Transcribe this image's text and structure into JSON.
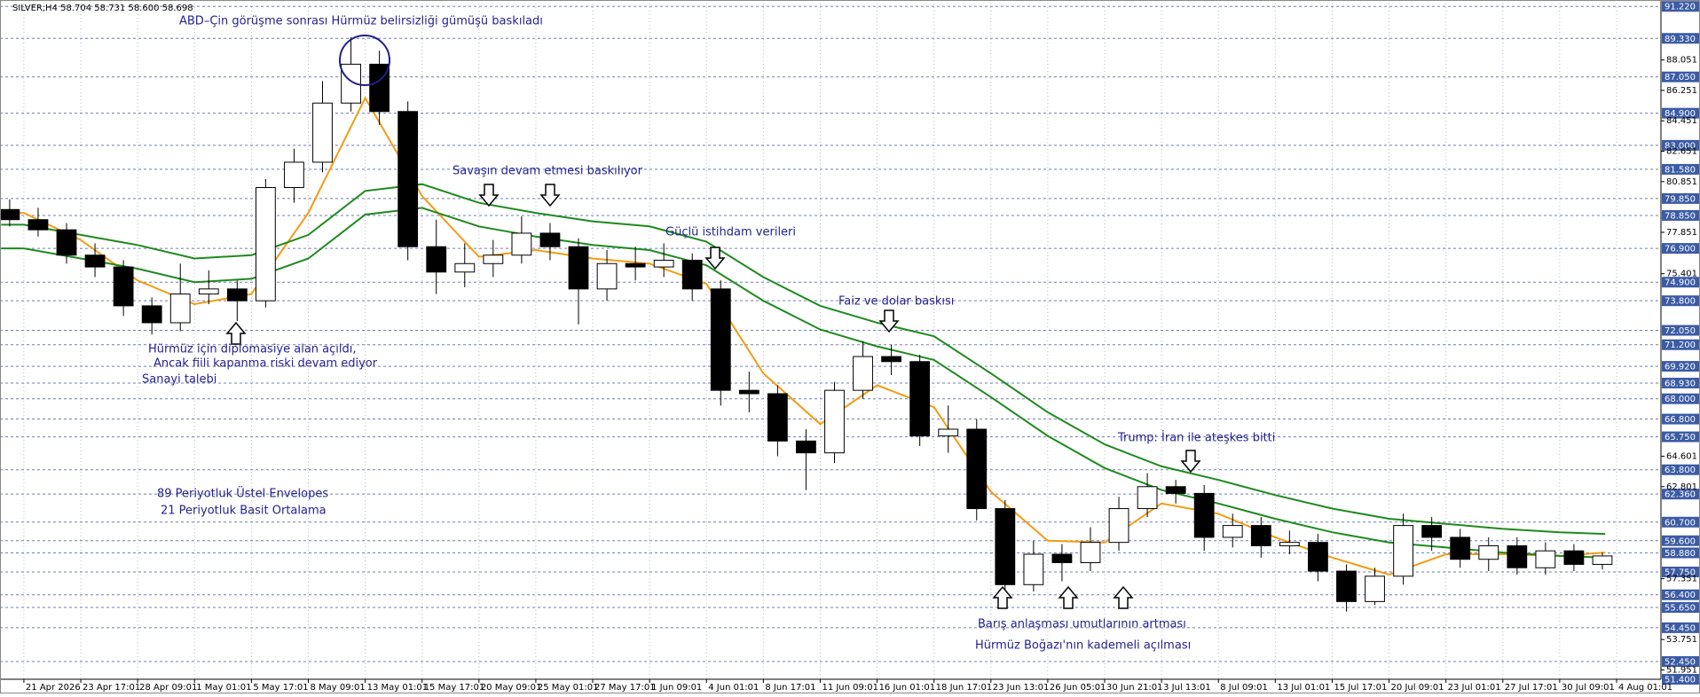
{
  "chart_data": {
    "type": "candlestick",
    "title": "SILVER,H4  58.704 58.731 58.600 58.698",
    "categories": [
      "21 Apr 2026",
      "23 Apr 17:01",
      "28 Apr 09:01",
      "1 May 01:01",
      "5 May 17:01",
      "8 May 09:01",
      "13 May 01:01",
      "15 May 17:01",
      "20 May 09:01",
      "25 May 01:01",
      "27 May 17:01",
      "1 Jun 09:01",
      "4 Jun 01:01",
      "8 Jun 17:01",
      "11 Jun 09:01",
      "16 Jun 01:01",
      "18 Jun 17:01",
      "23 Jun 13:01",
      "26 Jun 05:01",
      "30 Jun 21:01",
      "3 Jul 13:01",
      "8 Jul 09:01",
      "13 Jul 01:01",
      "15 Jul 17:01",
      "20 Jul 09:01",
      "23 Jul 01:01",
      "27 Jul 17:01",
      "30 Jul 09:01",
      "4 Aug 01:01"
    ],
    "xlim": [
      -0.42,
      28.78
    ],
    "ylim": [
      51.4,
      91.6
    ],
    "yticks": [
      51.951,
      53.751,
      57.351,
      62.801,
      64.601,
      75.401,
      77.851,
      80.851,
      82.651,
      84.451,
      86.251,
      88.051
    ],
    "levels": [
      {
        "value": 91.22,
        "label": "91.220"
      },
      {
        "value": 89.33,
        "label": "89.330"
      },
      {
        "value": 87.05,
        "label": "87.050"
      },
      {
        "value": 84.9,
        "label": "84.900"
      },
      {
        "value": 83,
        "label": "83.000"
      },
      {
        "value": 81.58,
        "label": "81.580"
      },
      {
        "value": 79.85,
        "label": "79.850"
      },
      {
        "value": 78.85,
        "label": "78.850"
      },
      {
        "value": 76.9,
        "label": "76.900"
      },
      {
        "value": 74.9,
        "label": "74.900"
      },
      {
        "value": 73.8,
        "label": "73.800"
      },
      {
        "value": 72.05,
        "label": "72.050"
      },
      {
        "value": 71.2,
        "label": "71.200"
      },
      {
        "value": 69.92,
        "label": "69.920"
      },
      {
        "value": 68.93,
        "label": "68.930"
      },
      {
        "value": 68,
        "label": "68.000"
      },
      {
        "value": 66.8,
        "label": "66.800"
      },
      {
        "value": 65.75,
        "label": "65.750"
      },
      {
        "value": 63.8,
        "label": "63.800"
      },
      {
        "value": 62.36,
        "label": "62.360"
      },
      {
        "value": 60.7,
        "label": "60.700"
      },
      {
        "value": 59.6,
        "label": "59.600"
      },
      {
        "value": 58.88,
        "label": "58.880"
      },
      {
        "value": 57.75,
        "label": "57.750"
      },
      {
        "value": 56.4,
        "label": "56.400"
      },
      {
        "value": 55.65,
        "label": "55.650"
      },
      {
        "value": 54.45,
        "label": "54.450"
      },
      {
        "value": 52.45,
        "label": "52.450"
      },
      {
        "value": 51.4,
        "label": "51.400"
      }
    ],
    "grid": true,
    "candles": {
      "x": [
        -0.25,
        0.25,
        0.75,
        1.25,
        1.75,
        2.25,
        2.75,
        3.25,
        3.75,
        4.25,
        4.75,
        5.25,
        5.75,
        6.25,
        6.75,
        7.25,
        7.75,
        8.25,
        8.75,
        9.25,
        9.75,
        10.25,
        10.75,
        11.25,
        11.75,
        12.25,
        12.75,
        13.25,
        13.75,
        14.25,
        14.75,
        15.25,
        15.75,
        16.25,
        16.75,
        17.25,
        17.75,
        18.25,
        18.75,
        19.25,
        19.75,
        20.25,
        20.75,
        21.25,
        21.75,
        22.25,
        22.75,
        23.25,
        23.75,
        24.25,
        24.75,
        25.25,
        25.75,
        26.25,
        26.75,
        27.25,
        27.75
      ],
      "open": [
        79.2,
        78.6,
        78.0,
        76.5,
        75.8,
        73.5,
        72.5,
        74.2,
        74.5,
        73.8,
        80.5,
        82.0,
        85.5,
        87.8,
        85.0,
        77.0,
        75.5,
        76.0,
        76.5,
        77.8,
        77.0,
        74.5,
        76.0,
        75.8,
        76.2,
        74.5,
        68.5,
        68.3,
        65.5,
        64.8,
        68.5,
        70.5,
        70.2,
        65.8,
        66.2,
        61.5,
        57.0,
        58.8,
        58.3,
        59.5,
        61.5,
        62.8,
        62.4,
        59.8,
        60.5,
        59.3,
        59.5,
        57.8,
        56.0,
        57.5,
        60.5,
        59.8,
        58.5,
        59.3,
        58.0,
        59.0,
        58.2
      ],
      "high": [
        79.8,
        79.3,
        78.4,
        77.2,
        76.2,
        74.0,
        76.0,
        75.6,
        75.0,
        81.0,
        82.8,
        86.8,
        89.4,
        88.6,
        85.6,
        78.6,
        77.2,
        77.4,
        78.8,
        78.4,
        77.5,
        76.8,
        77.0,
        77.2,
        76.6,
        75.0,
        69.6,
        68.8,
        66.2,
        69.0,
        71.4,
        71.2,
        70.6,
        67.6,
        66.8,
        62.0,
        59.6,
        59.4,
        60.4,
        62.2,
        63.6,
        63.2,
        62.9,
        61.2,
        61.0,
        60.2,
        60.0,
        58.2,
        58.0,
        61.2,
        61.0,
        60.3,
        59.8,
        59.8,
        59.5,
        59.4,
        58.9
      ],
      "low": [
        78.2,
        77.6,
        76.0,
        75.2,
        72.9,
        71.8,
        72.0,
        73.6,
        72.6,
        73.4,
        79.6,
        81.4,
        85.0,
        84.2,
        76.2,
        74.2,
        74.6,
        75.2,
        76.0,
        76.2,
        72.4,
        73.8,
        75.0,
        75.2,
        73.8,
        67.6,
        67.2,
        64.6,
        62.6,
        64.2,
        68.0,
        69.4,
        65.2,
        64.8,
        60.8,
        56.2,
        56.6,
        57.2,
        57.8,
        59.0,
        61.0,
        61.8,
        59.0,
        59.2,
        58.6,
        58.8,
        57.2,
        55.4,
        55.8,
        57.0,
        59.0,
        58.0,
        57.8,
        57.6,
        57.6,
        57.8,
        57.9
      ],
      "close": [
        78.6,
        78.0,
        76.5,
        75.8,
        73.5,
        72.5,
        74.2,
        74.5,
        73.8,
        80.5,
        82.0,
        85.5,
        87.8,
        85.0,
        77.0,
        75.5,
        76.0,
        76.5,
        77.8,
        77.0,
        74.5,
        76.0,
        75.8,
        76.2,
        74.5,
        68.5,
        68.3,
        65.5,
        64.8,
        68.5,
        70.5,
        70.2,
        65.8,
        66.2,
        61.5,
        57.0,
        58.8,
        58.3,
        59.5,
        61.5,
        62.8,
        62.4,
        59.8,
        60.5,
        59.3,
        59.5,
        57.8,
        56.0,
        57.5,
        60.5,
        59.8,
        58.5,
        59.3,
        58.0,
        59.0,
        58.2,
        58.698
      ]
    },
    "x": [
      -0.4,
      0,
      1,
      2,
      3,
      4,
      5,
      6,
      7,
      8,
      9,
      10,
      11,
      12,
      13,
      14,
      15,
      16,
      17,
      18,
      19,
      20,
      21,
      22,
      23,
      24,
      25,
      26,
      27,
      27.8
    ],
    "series": [
      {
        "name": "21 Periyotluk Basit Ortalama",
        "color": "#f39c12",
        "values": [
          79.0,
          79.0,
          77.4,
          75.0,
          73.6,
          74.2,
          79.0,
          85.8,
          80.0,
          76.4,
          76.8,
          76.3,
          76.0,
          74.8,
          69.5,
          66.5,
          68.8,
          67.5,
          62.5,
          59.6,
          59.5,
          61.8,
          61.2,
          59.8,
          58.6,
          57.6,
          58.8,
          58.8,
          58.7,
          58.9
        ]
      },
      {
        "name": "89 Periyotluk Üstel Envelopes",
        "color": "#1e8a1e",
        "values": [
          78.3,
          78.3,
          77.7,
          77.1,
          76.3,
          76.5,
          77.7,
          80.3,
          80.7,
          79.6,
          79.0,
          78.5,
          78.2,
          77.3,
          75.2,
          73.5,
          72.5,
          71.7,
          69.5,
          67.2,
          65.3,
          64.0,
          63.2,
          62.3,
          61.5,
          60.9,
          60.6,
          60.3,
          60.1,
          60.0
        ]
      },
      {
        "name": "89 Periyotluk Üstel Envelopes",
        "color": "#1e8a1e",
        "values": [
          76.9,
          76.9,
          76.3,
          75.7,
          74.9,
          75.1,
          76.3,
          78.9,
          79.3,
          78.2,
          77.6,
          77.1,
          76.8,
          75.9,
          73.8,
          72.1,
          71.1,
          70.3,
          68.1,
          65.8,
          63.9,
          62.6,
          61.8,
          60.9,
          60.1,
          59.5,
          59.2,
          58.9,
          58.7,
          58.6
        ]
      }
    ],
    "annotations": [
      "ABD–Çin görüşme sonrası Hürmüz belirsizliği gümüşü baskıladı",
      "Savaşın devam etmesi baskılıyor",
      "Güçlü istihdam verileri",
      "Faiz ve dolar baskısı",
      "Hürmüz için diplomasiye alan açıldı,",
      "Ancak fiili kapanma riski devam ediyor",
      "Sanayi talebi",
      "Trump: İran ile ateşkes bitti",
      "89 Periyotluk Üstel Envelopes",
      "21 Periyotluk Basit Ortalama",
      "Barış anlaşması umutlarının artması",
      "Hürmüz Boğazı'nın kademeli açılması"
    ]
  }
}
